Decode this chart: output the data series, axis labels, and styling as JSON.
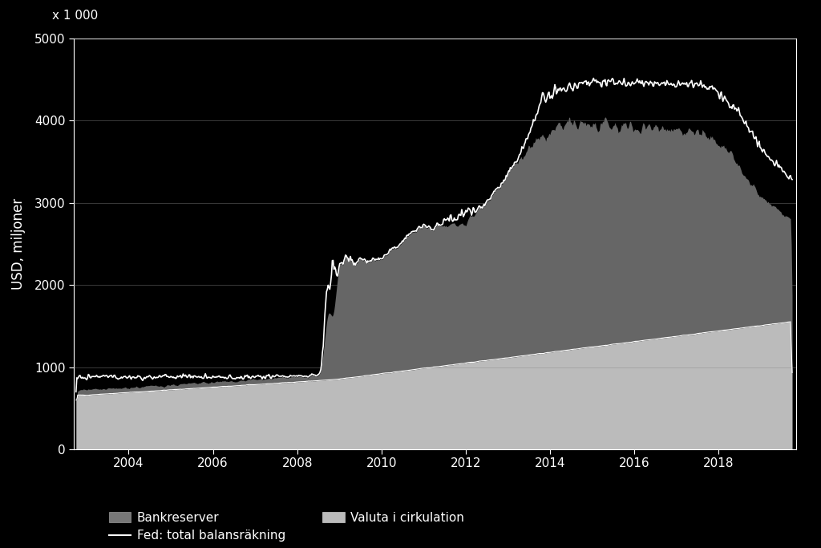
{
  "ylabel": "USD, miljoner",
  "ylim": [
    0,
    5000
  ],
  "xlim_start": 2002.7,
  "xlim_end": 2019.85,
  "yticks": [
    0,
    1000,
    2000,
    3000,
    4000,
    5000
  ],
  "xticks": [
    2004,
    2006,
    2008,
    2010,
    2012,
    2014,
    2016,
    2018
  ],
  "ytick_multiplier_label": "x 1 000",
  "background_color": "#000000",
  "plot_bg_color": "#000000",
  "grid_color": "#888888",
  "text_color": "#ffffff",
  "axis_color": "#ffffff",
  "currency_color": "#bbbbbb",
  "reserves_color": "#666666",
  "fed_line_color": "#ffffff",
  "font_size": 12,
  "tick_font_size": 11,
  "legend_font_size": 11
}
